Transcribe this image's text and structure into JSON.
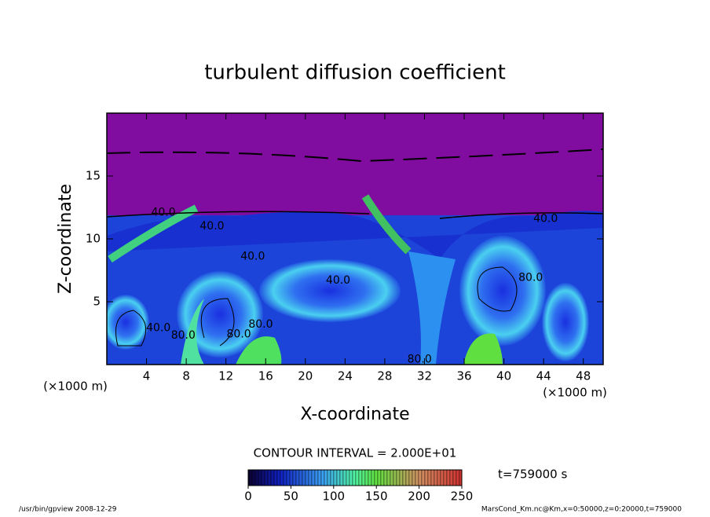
{
  "chart_data": {
    "type": "contour",
    "title": "turbulent diffusion coefficient",
    "x_label": "X-coordinate",
    "y_label": "Z-coordinate",
    "x_unit_label": "(×1000 m)",
    "y_unit_label": "(×1000 m)",
    "xlim": [
      0,
      50
    ],
    "xticks": [
      4,
      8,
      12,
      16,
      20,
      24,
      28,
      32,
      36,
      40,
      44,
      48
    ],
    "ylim": [
      0,
      20
    ],
    "yticks": [
      5,
      10,
      15
    ],
    "contour_interval_label": "CONTOUR INTERVAL = 2.000E+01",
    "time_label": "t=759000 s",
    "colorbar": {
      "lim": [
        0,
        250
      ],
      "ticks": [
        0,
        50,
        100,
        150,
        200,
        250
      ]
    },
    "annotations": [
      {
        "text": "40.0",
        "x": 5.7,
        "y": 12.1
      },
      {
        "text": "40.0",
        "x": 10.6,
        "y": 11.0
      },
      {
        "text": "40.0",
        "x": 14.7,
        "y": 8.6
      },
      {
        "text": "40.0",
        "x": 23.3,
        "y": 6.7
      },
      {
        "text": "40.0",
        "x": 44.2,
        "y": 11.6
      },
      {
        "text": "40.0",
        "x": 5.2,
        "y": 2.9
      },
      {
        "text": "80.0",
        "x": 7.7,
        "y": 2.3
      },
      {
        "text": "80.0",
        "x": 13.3,
        "y": 2.4
      },
      {
        "text": "80.0",
        "x": 15.5,
        "y": 3.2
      },
      {
        "text": "80.0",
        "x": 42.7,
        "y": 6.9
      },
      {
        "text": "80.0",
        "x": 31.5,
        "y": 0.4
      }
    ],
    "footer_left": "/usr/bin/gpview  2008-12-29",
    "footer_right": "MarsCond_Km.nc@Km,x=0:50000,z=0:20000,t=759000"
  }
}
